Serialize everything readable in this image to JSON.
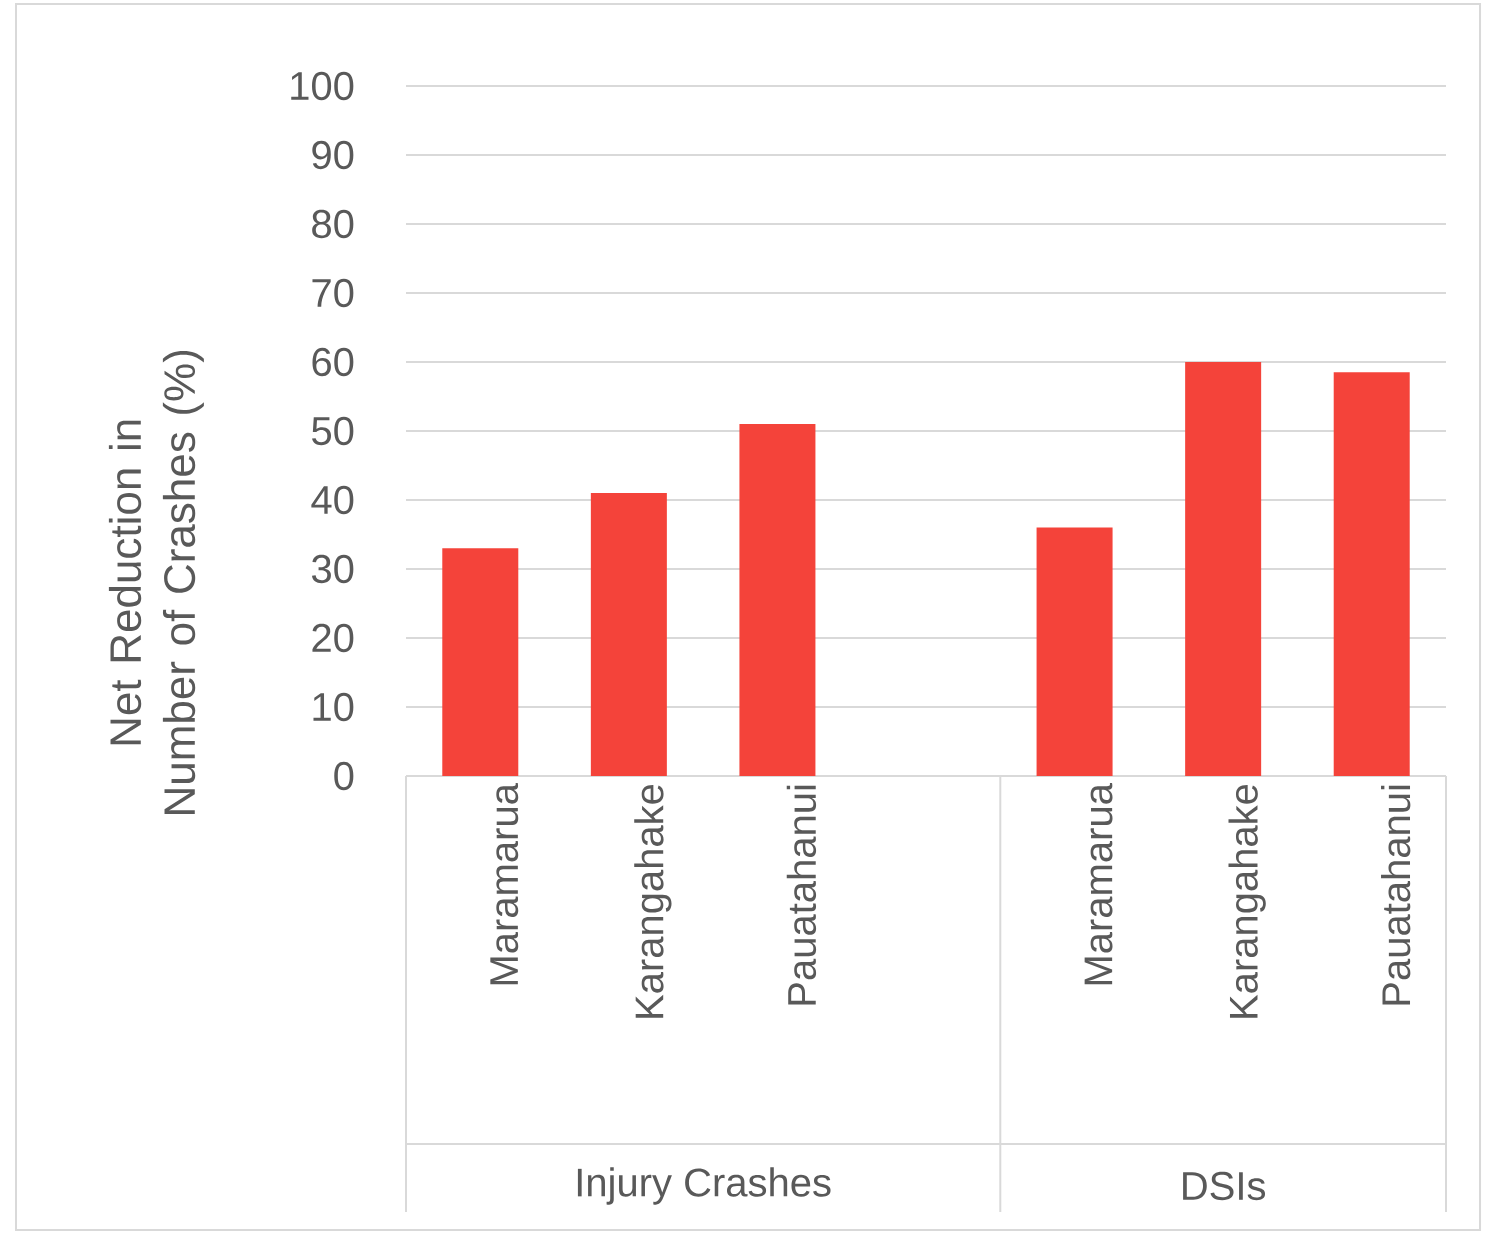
{
  "chart_data": {
    "type": "bar",
    "ylabel": "Net Reduction in Number of Crashes (%)",
    "categories": [
      "Maramarua",
      "Karangahake",
      "Pauatahanui",
      null,
      "Maramarua",
      "Karangahake",
      "Pauatahanui"
    ],
    "values": [
      33,
      41,
      51,
      null,
      36,
      60,
      58.5
    ],
    "color": "#f4433a",
    "ylim": [
      0,
      100
    ],
    "yticks": [
      0,
      10,
      20,
      30,
      40,
      50,
      60,
      70,
      80,
      90,
      100
    ],
    "grid": "y",
    "annotations": [
      "Injury Crashes",
      "DSIs"
    ]
  }
}
